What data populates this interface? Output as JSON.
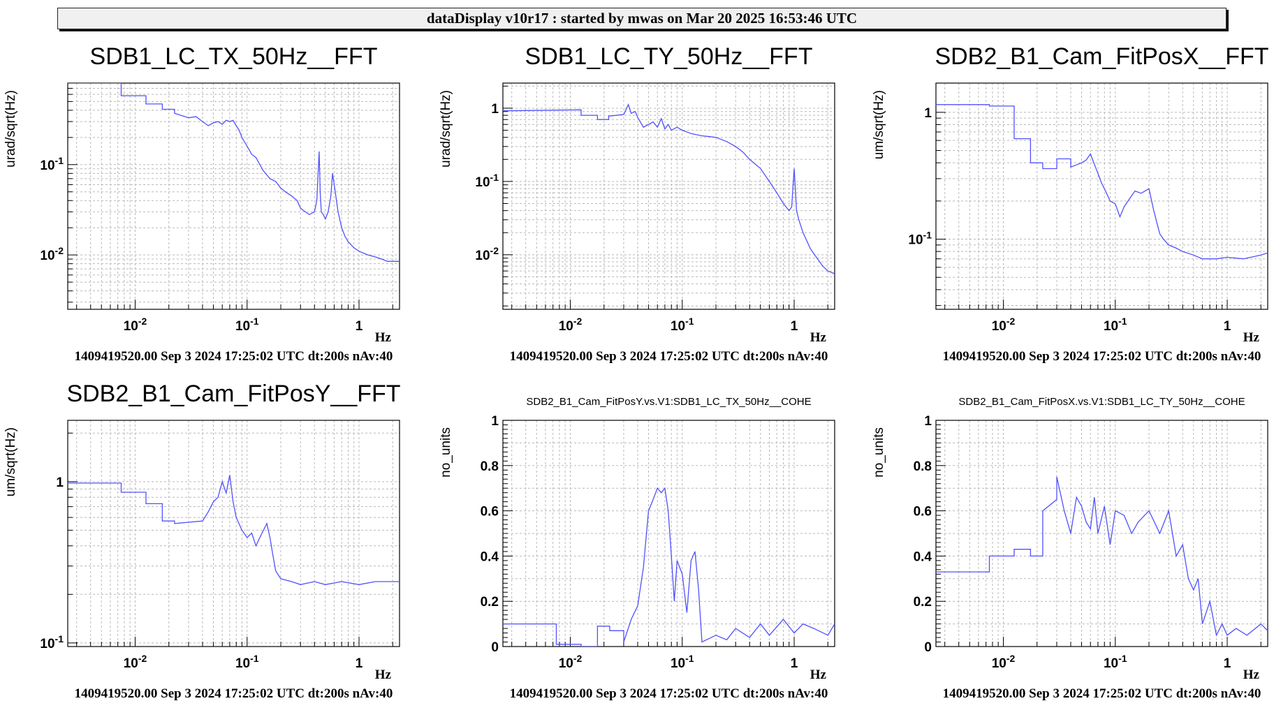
{
  "header": {
    "title": "dataDisplay v10r17 : started by mwas on Mar 20 2025 16:53:46 UTC"
  },
  "chart_data": [
    {
      "type": "line",
      "title": "SDB1_LC_TX_50Hz__FFT",
      "ylabel": "urad/sqrt(Hz)",
      "xunit": "Hz",
      "xscale": "log",
      "yscale": "log",
      "xlim": [
        0.0025,
        2.3
      ],
      "ylim": [
        0.0025,
        0.8
      ],
      "grid": true,
      "color": "#5050ff",
      "x_ticks": [
        "10-2",
        "10-1",
        "1"
      ],
      "y_ticks": [
        "10-1",
        "10-2"
      ],
      "footer": "1409419520.00 Sep 3 2024 17:25:02 UTC dt:200s nAv:40",
      "series": [
        {
          "x": [
            0.0025,
            0.0075,
            0.0075,
            0.0125,
            0.0125,
            0.0175,
            0.0175,
            0.0225,
            0.0225,
            0.03,
            0.035,
            0.04,
            0.045,
            0.05,
            0.055,
            0.06,
            0.065,
            0.07,
            0.075,
            0.08,
            0.085,
            0.09,
            0.1,
            0.11,
            0.12,
            0.13,
            0.14,
            0.16,
            0.18,
            0.2,
            0.22,
            0.25,
            0.28,
            0.3,
            0.33,
            0.36,
            0.4,
            0.42,
            0.44,
            0.45,
            0.46,
            0.48,
            0.5,
            0.53,
            0.56,
            0.58,
            0.6,
            0.62,
            0.65,
            0.7,
            0.75,
            0.8,
            0.9,
            1.0,
            1.2,
            1.4,
            1.6,
            1.8,
            2.0,
            2.3
          ],
          "y": [
            0.8,
            0.8,
            0.58,
            0.58,
            0.47,
            0.47,
            0.41,
            0.41,
            0.37,
            0.33,
            0.34,
            0.3,
            0.27,
            0.29,
            0.3,
            0.28,
            0.31,
            0.3,
            0.31,
            0.27,
            0.24,
            0.2,
            0.16,
            0.13,
            0.12,
            0.1,
            0.085,
            0.07,
            0.065,
            0.055,
            0.05,
            0.045,
            0.04,
            0.033,
            0.03,
            0.028,
            0.03,
            0.04,
            0.14,
            0.05,
            0.03,
            0.028,
            0.025,
            0.03,
            0.045,
            0.08,
            0.06,
            0.045,
            0.03,
            0.02,
            0.016,
            0.014,
            0.012,
            0.011,
            0.01,
            0.0095,
            0.009,
            0.0085,
            0.0085,
            0.0085
          ]
        }
      ]
    },
    {
      "type": "line",
      "title": "SDB1_LC_TY_50Hz__FFT",
      "ylabel": "urad/sqrt(Hz)",
      "xunit": "Hz",
      "xscale": "log",
      "yscale": "log",
      "xlim": [
        0.0025,
        2.3
      ],
      "ylim": [
        0.0018,
        2.2
      ],
      "grid": true,
      "color": "#5050ff",
      "x_ticks": [
        "10-2",
        "10-1",
        "1"
      ],
      "y_ticks": [
        "1",
        "10-1",
        "10-2"
      ],
      "footer": "1409419520.00 Sep 3 2024 17:25:02 UTC dt:200s nAv:40",
      "series": [
        {
          "x": [
            0.0025,
            0.0125,
            0.0125,
            0.0175,
            0.0175,
            0.022,
            0.022,
            0.03,
            0.033,
            0.035,
            0.038,
            0.04,
            0.045,
            0.05,
            0.055,
            0.06,
            0.065,
            0.07,
            0.075,
            0.08,
            0.09,
            0.1,
            0.12,
            0.15,
            0.2,
            0.25,
            0.3,
            0.35,
            0.4,
            0.5,
            0.6,
            0.7,
            0.8,
            0.9,
            0.95,
            1.0,
            1.05,
            1.1,
            1.2,
            1.4,
            1.6,
            1.8,
            2.0,
            2.3
          ],
          "y": [
            0.92,
            0.95,
            0.8,
            0.8,
            0.7,
            0.7,
            0.78,
            0.82,
            1.12,
            0.85,
            0.9,
            0.75,
            0.55,
            0.6,
            0.65,
            0.55,
            0.72,
            0.52,
            0.6,
            0.5,
            0.55,
            0.5,
            0.45,
            0.42,
            0.4,
            0.35,
            0.3,
            0.25,
            0.2,
            0.15,
            0.1,
            0.07,
            0.05,
            0.04,
            0.045,
            0.15,
            0.04,
            0.03,
            0.02,
            0.012,
            0.009,
            0.007,
            0.006,
            0.0055
          ]
        }
      ]
    },
    {
      "type": "line",
      "title": "SDB2_B1_Cam_FitPosX__FFT",
      "ylabel": "um/sqrt(Hz)",
      "xunit": "Hz",
      "xscale": "log",
      "yscale": "log",
      "xlim": [
        0.0025,
        2.3
      ],
      "ylim": [
        0.028,
        1.7
      ],
      "grid": true,
      "color": "#5050ff",
      "x_ticks": [
        "10-2",
        "10-1",
        "1"
      ],
      "y_ticks": [
        "1",
        "10-1"
      ],
      "footer": "1409419520.00 Sep 3 2024 17:25:02 UTC dt:200s nAv:40",
      "series": [
        {
          "x": [
            0.0025,
            0.0075,
            0.0075,
            0.0125,
            0.0125,
            0.0175,
            0.0175,
            0.0225,
            0.0225,
            0.03,
            0.03,
            0.04,
            0.04,
            0.05,
            0.055,
            0.06,
            0.065,
            0.07,
            0.075,
            0.08,
            0.09,
            0.1,
            0.11,
            0.12,
            0.13,
            0.14,
            0.15,
            0.17,
            0.2,
            0.22,
            0.25,
            0.27,
            0.3,
            0.35,
            0.4,
            0.5,
            0.6,
            0.8,
            1.0,
            1.4,
            2.0,
            2.3
          ],
          "y": [
            1.15,
            1.15,
            1.12,
            1.12,
            0.62,
            0.62,
            0.4,
            0.4,
            0.36,
            0.36,
            0.43,
            0.43,
            0.37,
            0.4,
            0.42,
            0.47,
            0.39,
            0.33,
            0.28,
            0.25,
            0.2,
            0.19,
            0.15,
            0.18,
            0.2,
            0.22,
            0.24,
            0.23,
            0.25,
            0.17,
            0.11,
            0.1,
            0.09,
            0.085,
            0.08,
            0.075,
            0.07,
            0.07,
            0.072,
            0.07,
            0.075,
            0.078
          ]
        }
      ]
    },
    {
      "type": "line",
      "title": "SDB2_B1_Cam_FitPosY__FFT",
      "ylabel": "um/sqrt(Hz)",
      "xunit": "Hz",
      "xscale": "log",
      "yscale": "log",
      "xlim": [
        0.0025,
        2.3
      ],
      "ylim": [
        0.095,
        2.4
      ],
      "grid": true,
      "color": "#5050ff",
      "x_ticks": [
        "10-2",
        "10-1",
        "1"
      ],
      "y_ticks": [
        "1",
        "10-1"
      ],
      "footer": "1409419520.00 Sep 3 2024 17:25:02 UTC dt:200s nAv:40",
      "series": [
        {
          "x": [
            0.0025,
            0.0075,
            0.0075,
            0.0125,
            0.0125,
            0.0175,
            0.0175,
            0.0225,
            0.0225,
            0.03,
            0.04,
            0.045,
            0.05,
            0.055,
            0.06,
            0.065,
            0.07,
            0.075,
            0.08,
            0.09,
            0.1,
            0.11,
            0.12,
            0.13,
            0.14,
            0.15,
            0.16,
            0.17,
            0.18,
            0.2,
            0.25,
            0.3,
            0.4,
            0.5,
            0.7,
            1.0,
            1.4,
            2.0,
            2.3
          ],
          "y": [
            0.98,
            0.98,
            0.86,
            0.86,
            0.73,
            0.73,
            0.57,
            0.57,
            0.55,
            0.56,
            0.57,
            0.65,
            0.75,
            0.8,
            1.0,
            0.85,
            1.1,
            0.75,
            0.6,
            0.5,
            0.45,
            0.48,
            0.4,
            0.45,
            0.5,
            0.55,
            0.45,
            0.35,
            0.28,
            0.25,
            0.24,
            0.23,
            0.24,
            0.23,
            0.24,
            0.23,
            0.24,
            0.24,
            0.24
          ]
        }
      ]
    },
    {
      "type": "line",
      "title": "SDB2_B1_Cam_FitPosY.vs.V1:SDB1_LC_TX_50Hz__COHE",
      "ylabel": "no_units",
      "xunit": "Hz",
      "xscale": "log",
      "yscale": "linear",
      "xlim": [
        0.0025,
        2.3
      ],
      "ylim": [
        0,
        1
      ],
      "grid": true,
      "color": "#5050ff",
      "x_ticks": [
        "10-2",
        "10-1",
        "1"
      ],
      "y_ticks": [
        "0",
        "0.2",
        "0.4",
        "0.6",
        "0.8",
        "1"
      ],
      "footer": "1409419520.00 Sep 3 2024 17:25:02 UTC dt:200s nAv:40",
      "series": [
        {
          "x": [
            0.0025,
            0.005,
            0.005,
            0.0075,
            0.0075,
            0.0125,
            0.0125,
            0.0175,
            0.0175,
            0.0225,
            0.0225,
            0.03,
            0.03,
            0.035,
            0.04,
            0.045,
            0.05,
            0.055,
            0.06,
            0.065,
            0.07,
            0.075,
            0.08,
            0.085,
            0.09,
            0.1,
            0.11,
            0.12,
            0.13,
            0.14,
            0.15,
            0.2,
            0.25,
            0.3,
            0.4,
            0.5,
            0.6,
            0.8,
            1.0,
            1.2,
            1.5,
            2.0,
            2.3
          ],
          "y": [
            0.1,
            0.1,
            0.1,
            0.1,
            0.01,
            0.01,
            0.0,
            0.0,
            0.09,
            0.09,
            0.07,
            0.07,
            0.02,
            0.12,
            0.18,
            0.35,
            0.6,
            0.65,
            0.7,
            0.68,
            0.7,
            0.6,
            0.4,
            0.2,
            0.38,
            0.32,
            0.15,
            0.38,
            0.42,
            0.25,
            0.02,
            0.05,
            0.03,
            0.08,
            0.04,
            0.1,
            0.05,
            0.12,
            0.06,
            0.1,
            0.08,
            0.05,
            0.1
          ]
        }
      ]
    },
    {
      "type": "line",
      "title": "SDB2_B1_Cam_FitPosX.vs.V1:SDB1_LC_TY_50Hz__COHE",
      "ylabel": "no_units",
      "xunit": "Hz",
      "xscale": "log",
      "yscale": "linear",
      "xlim": [
        0.0025,
        2.3
      ],
      "ylim": [
        0,
        1
      ],
      "grid": true,
      "color": "#5050ff",
      "x_ticks": [
        "10-2",
        "10-1",
        "1"
      ],
      "y_ticks": [
        "0",
        "0.2",
        "0.4",
        "0.6",
        "0.8",
        "1"
      ],
      "footer": "1409419520.00 Sep 3 2024 17:25:02 UTC dt:200s nAv:40",
      "series": [
        {
          "x": [
            0.0025,
            0.0075,
            0.0075,
            0.0125,
            0.0125,
            0.0175,
            0.0175,
            0.0225,
            0.0225,
            0.03,
            0.03,
            0.035,
            0.04,
            0.045,
            0.05,
            0.055,
            0.06,
            0.065,
            0.07,
            0.08,
            0.09,
            0.1,
            0.12,
            0.14,
            0.16,
            0.2,
            0.25,
            0.3,
            0.35,
            0.4,
            0.45,
            0.5,
            0.55,
            0.6,
            0.7,
            0.8,
            0.9,
            1.0,
            1.2,
            1.5,
            2.0,
            2.3
          ],
          "y": [
            0.33,
            0.33,
            0.4,
            0.4,
            0.43,
            0.43,
            0.4,
            0.4,
            0.6,
            0.65,
            0.75,
            0.6,
            0.5,
            0.66,
            0.62,
            0.55,
            0.52,
            0.66,
            0.5,
            0.62,
            0.45,
            0.6,
            0.58,
            0.5,
            0.55,
            0.6,
            0.5,
            0.6,
            0.4,
            0.45,
            0.3,
            0.25,
            0.3,
            0.1,
            0.2,
            0.05,
            0.1,
            0.05,
            0.08,
            0.05,
            0.1,
            0.07
          ]
        }
      ]
    }
  ]
}
